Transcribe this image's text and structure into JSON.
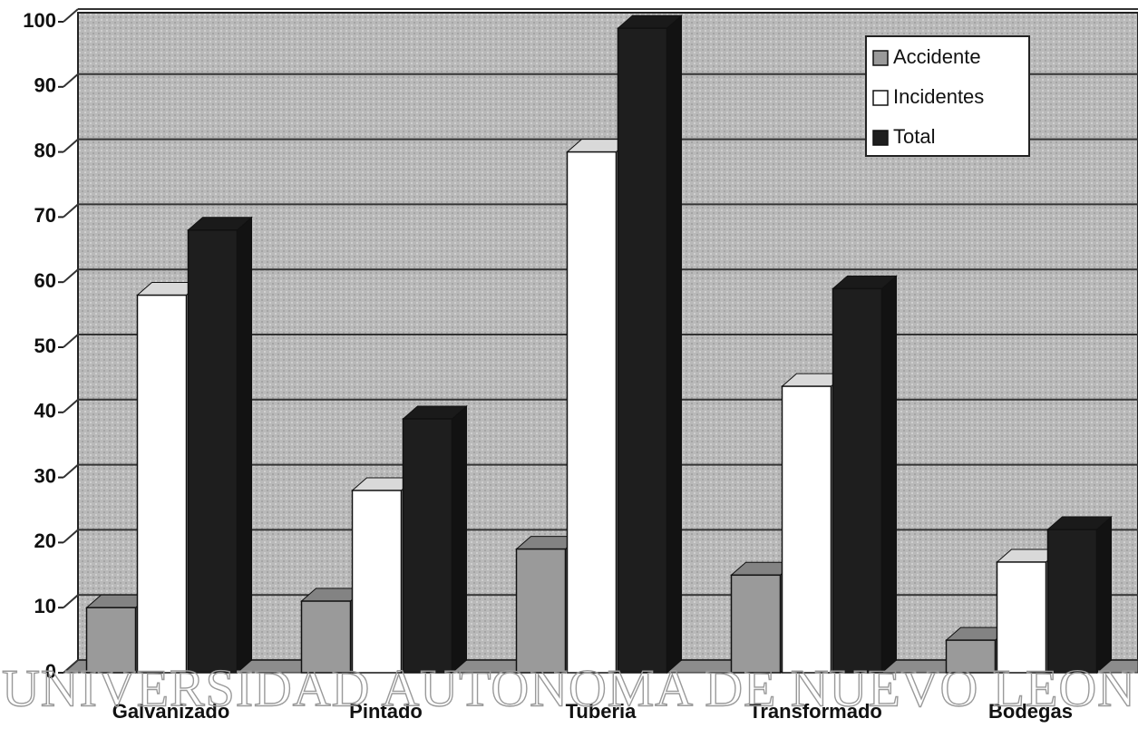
{
  "chart_data": {
    "type": "bar",
    "categories": [
      "Galvanizado",
      "Pintado",
      "Tuberia",
      "Transformado",
      "Bodegas"
    ],
    "series": [
      {
        "name": "Accidente",
        "color": "#9a9a9a",
        "values": [
          10,
          11,
          19,
          15,
          5
        ]
      },
      {
        "name": "Incidentes",
        "color": "#ffffff",
        "values": [
          58,
          28,
          80,
          44,
          17
        ]
      },
      {
        "name": "Total",
        "color": "#1e1e1e",
        "values": [
          68,
          39,
          99,
          59,
          22
        ]
      }
    ],
    "ylim": [
      0,
      100
    ],
    "yticks": [
      0,
      10,
      20,
      30,
      40,
      50,
      60,
      70,
      80,
      90,
      100
    ],
    "grid": true,
    "legend": "upper right",
    "watermark": "UNIVERSIDAD AUTONOMA DE NUEVO LEON"
  }
}
